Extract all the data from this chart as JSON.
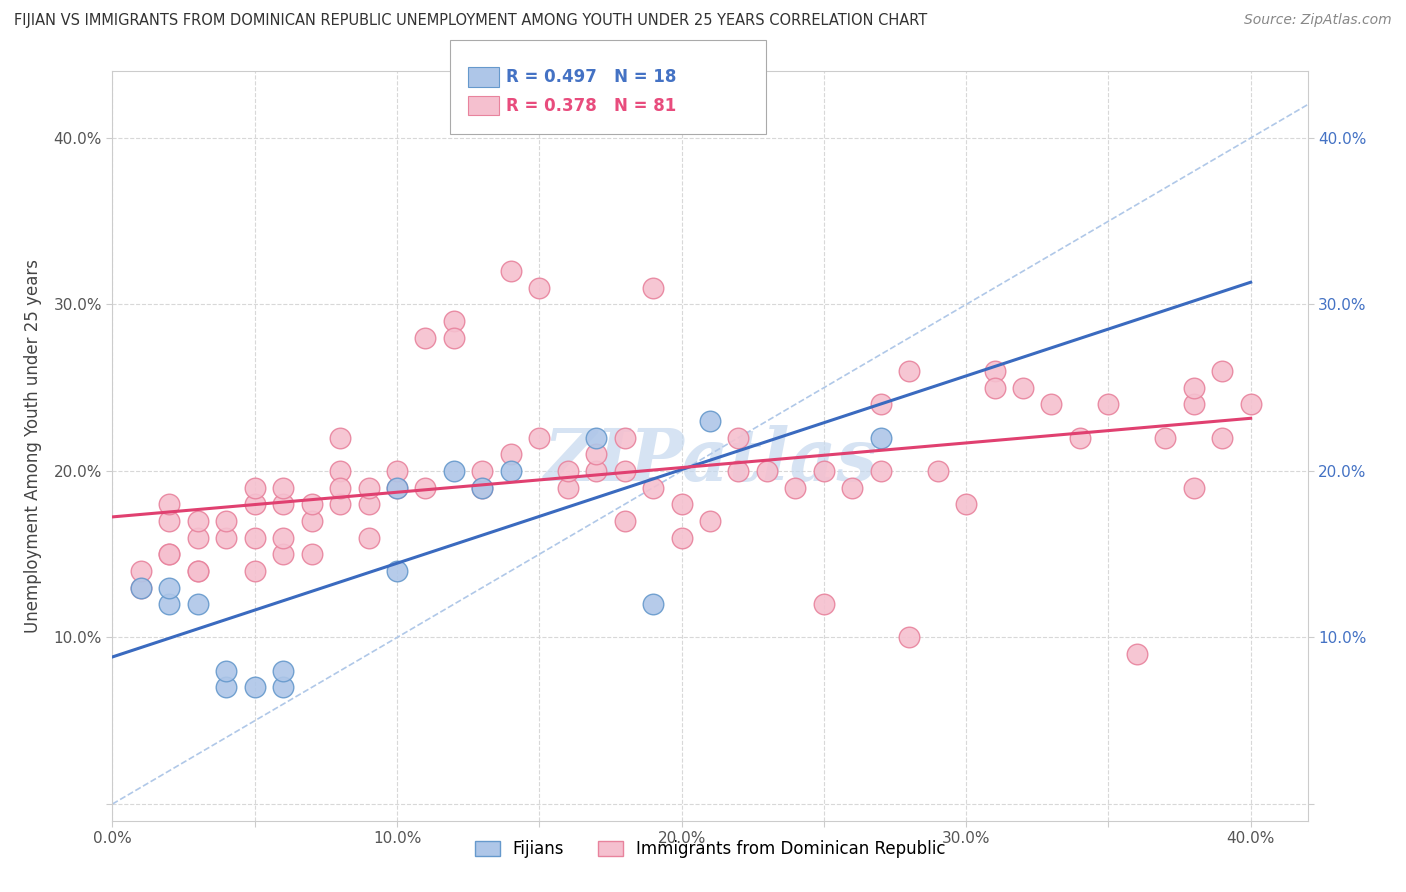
{
  "title": "FIJIAN VS IMMIGRANTS FROM DOMINICAN REPUBLIC UNEMPLOYMENT AMONG YOUTH UNDER 25 YEARS CORRELATION CHART",
  "source": "Source: ZipAtlas.com",
  "ylabel": "Unemployment Among Youth under 25 years",
  "xlim": [
    0.0,
    0.42
  ],
  "ylim": [
    -0.01,
    0.44
  ],
  "fijian_R": 0.497,
  "fijian_N": 18,
  "domrep_R": 0.378,
  "domrep_N": 81,
  "fijian_color": "#aec6e8",
  "fijian_edge": "#6699cc",
  "domrep_color": "#f5c0cf",
  "domrep_edge": "#e8839d",
  "fijian_line_color": "#3a6abf",
  "domrep_line_color": "#e04070",
  "dash_line_color": "#b0c8e8",
  "watermark": "ZIPatlas",
  "watermark_color": "#c5d8ee",
  "fijian_x": [
    0.01,
    0.02,
    0.02,
    0.03,
    0.04,
    0.04,
    0.05,
    0.06,
    0.06,
    0.1,
    0.1,
    0.12,
    0.13,
    0.14,
    0.17,
    0.19,
    0.21,
    0.27
  ],
  "fijian_y": [
    0.13,
    0.12,
    0.13,
    0.12,
    0.07,
    0.08,
    0.07,
    0.07,
    0.08,
    0.14,
    0.19,
    0.2,
    0.19,
    0.2,
    0.22,
    0.12,
    0.23,
    0.22
  ],
  "domrep_x": [
    0.01,
    0.01,
    0.02,
    0.02,
    0.02,
    0.02,
    0.03,
    0.03,
    0.03,
    0.03,
    0.04,
    0.04,
    0.05,
    0.05,
    0.05,
    0.05,
    0.06,
    0.06,
    0.06,
    0.06,
    0.07,
    0.07,
    0.07,
    0.08,
    0.08,
    0.08,
    0.08,
    0.09,
    0.09,
    0.09,
    0.1,
    0.1,
    0.11,
    0.11,
    0.12,
    0.12,
    0.13,
    0.13,
    0.14,
    0.14,
    0.15,
    0.15,
    0.16,
    0.16,
    0.17,
    0.17,
    0.18,
    0.18,
    0.18,
    0.19,
    0.19,
    0.2,
    0.2,
    0.21,
    0.22,
    0.22,
    0.23,
    0.24,
    0.25,
    0.25,
    0.26,
    0.27,
    0.27,
    0.28,
    0.28,
    0.29,
    0.3,
    0.31,
    0.31,
    0.32,
    0.33,
    0.34,
    0.35,
    0.36,
    0.37,
    0.38,
    0.38,
    0.38,
    0.39,
    0.39,
    0.4
  ],
  "domrep_y": [
    0.13,
    0.14,
    0.15,
    0.15,
    0.17,
    0.18,
    0.14,
    0.14,
    0.16,
    0.17,
    0.16,
    0.17,
    0.14,
    0.16,
    0.18,
    0.19,
    0.15,
    0.16,
    0.18,
    0.19,
    0.15,
    0.17,
    0.18,
    0.18,
    0.2,
    0.19,
    0.22,
    0.16,
    0.18,
    0.19,
    0.19,
    0.2,
    0.19,
    0.28,
    0.29,
    0.28,
    0.19,
    0.2,
    0.21,
    0.32,
    0.22,
    0.31,
    0.19,
    0.2,
    0.2,
    0.21,
    0.17,
    0.2,
    0.22,
    0.19,
    0.31,
    0.18,
    0.16,
    0.17,
    0.2,
    0.22,
    0.2,
    0.19,
    0.12,
    0.2,
    0.19,
    0.24,
    0.2,
    0.1,
    0.26,
    0.2,
    0.18,
    0.26,
    0.25,
    0.25,
    0.24,
    0.22,
    0.24,
    0.09,
    0.22,
    0.19,
    0.24,
    0.25,
    0.22,
    0.26,
    0.24
  ],
  "x_ticks": [
    0.0,
    0.05,
    0.1,
    0.15,
    0.2,
    0.25,
    0.3,
    0.35,
    0.4
  ],
  "y_ticks": [
    0.0,
    0.1,
    0.2,
    0.3,
    0.4
  ],
  "x_tick_labels": [
    "0.0%",
    "",
    "10.0%",
    "",
    "20.0%",
    "",
    "30.0%",
    "",
    "40.0%"
  ],
  "y_tick_labels": [
    "",
    "10.0%",
    "20.0%",
    "30.0%",
    "40.0%"
  ]
}
